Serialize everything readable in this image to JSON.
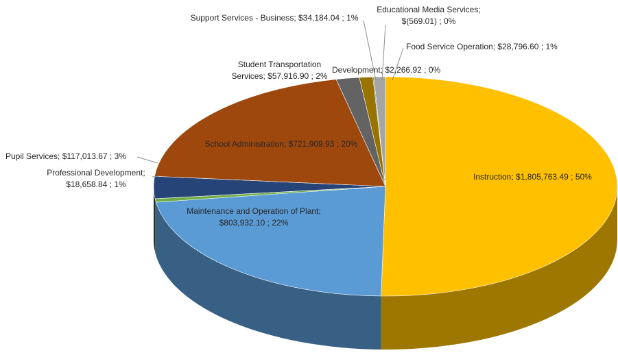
{
  "chart_data": {
    "type": "pie",
    "categories": [
      "Instruction",
      "Maintenance and Operation of Plant",
      "Professional Development",
      "Pupil Services",
      "School Administration",
      "Student Transportation Services",
      "Support Services - Business",
      "Educational Media Services",
      "Development",
      "Food Service Operation"
    ],
    "values": [
      1805763.49,
      803932.1,
      18658.84,
      117013.67,
      721909.93,
      57916.9,
      34184.04,
      -569.01,
      2266.92,
      28796.6
    ],
    "value_labels": [
      "$1,805,763.49",
      "$803,932.10",
      "$18,658.84",
      "$117,013.67",
      "$721,909.93",
      "$57,916.90",
      "$34,184.04",
      "$(569.01)",
      "$2,266.92",
      "$28,796.60"
    ],
    "percents": [
      50,
      22,
      1,
      3,
      20,
      2,
      1,
      0,
      0,
      1
    ],
    "percent_labels": [
      "50%",
      "22%",
      "1%",
      "3%",
      "20%",
      "2%",
      "1%",
      "0%",
      "0%",
      "1%"
    ],
    "label_separators": [
      ";",
      " ;"
    ],
    "colors": [
      "#ffc000",
      "#5b9bd5",
      "#70ad47",
      "#264478",
      "#9e480e",
      "#636363",
      "#997300",
      "#255e91",
      "#43682b",
      "#a5a5a5"
    ]
  }
}
